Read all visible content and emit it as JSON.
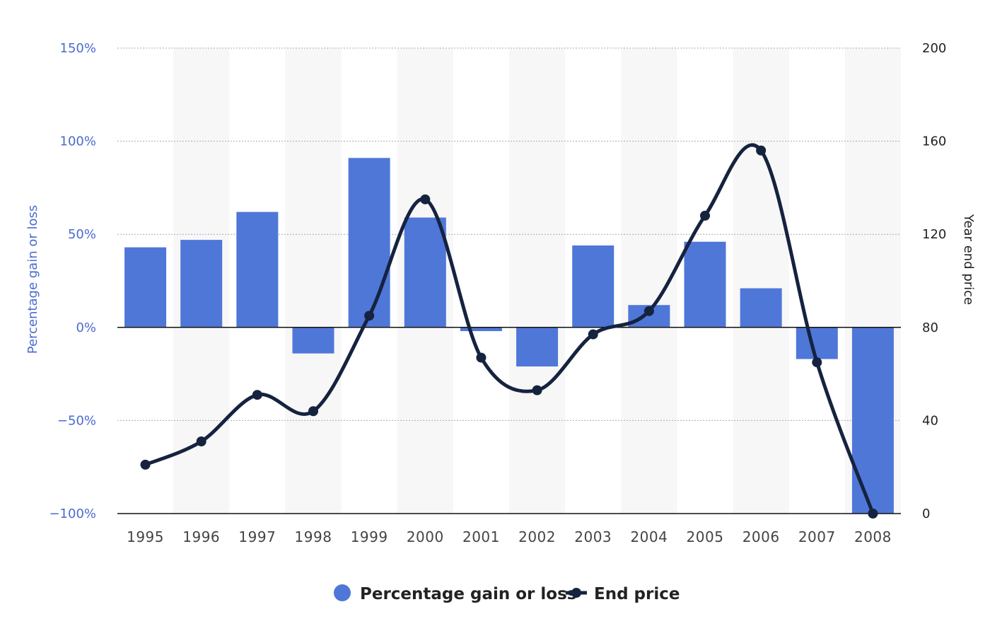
{
  "chart_data": {
    "type": "bar",
    "categories": [
      "1995",
      "1996",
      "1997",
      "1998",
      "1999",
      "2000",
      "2001",
      "2002",
      "2003",
      "2004",
      "2005",
      "2006",
      "2007",
      "2008"
    ],
    "series": [
      {
        "name": "Percentage gain or loss",
        "type": "bar",
        "axis": "left",
        "color": "#4f77d8",
        "values": [
          43,
          47,
          62,
          -14,
          91,
          59,
          -2,
          -21,
          44,
          12,
          46,
          21,
          -17,
          -100
        ]
      },
      {
        "name": "End price",
        "type": "line",
        "axis": "right",
        "color": "#15233f",
        "values": [
          21,
          31,
          51,
          44,
          85,
          135,
          67,
          53,
          77,
          87,
          128,
          156,
          65,
          0
        ]
      }
    ],
    "y_left": {
      "label": "Percentage gain or loss",
      "range": [
        -100,
        150
      ],
      "ticks": [
        -100,
        -50,
        0,
        50,
        100,
        150
      ],
      "tick_labels": [
        "−100%",
        "−50%",
        "0%",
        "50%",
        "100%",
        "150%"
      ]
    },
    "y_right": {
      "label": "Year end price",
      "range": [
        0,
        200
      ],
      "ticks": [
        0,
        40,
        80,
        120,
        160,
        200
      ],
      "tick_labels": [
        "0",
        "40",
        "80",
        "120",
        "160",
        "200"
      ]
    },
    "grid": true,
    "legend_position": "bottom-center"
  }
}
